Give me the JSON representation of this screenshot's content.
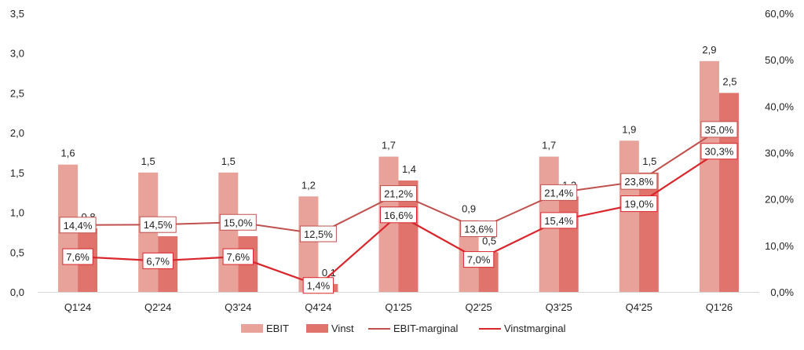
{
  "chart_data": {
    "type": "bar",
    "categories": [
      "Q1'24",
      "Q2'24",
      "Q3'24",
      "Q4'24",
      "Q1'25",
      "Q2'25",
      "Q3'25",
      "Q4'25",
      "Q1'26"
    ],
    "series": [
      {
        "name": "EBIT",
        "kind": "bar",
        "axis": "left",
        "color": "#e8a29a",
        "values": [
          1.6,
          1.5,
          1.5,
          1.2,
          1.7,
          0.9,
          1.7,
          1.9,
          2.9
        ],
        "labels": [
          "1,6",
          "1,5",
          "1,5",
          "1,2",
          "1,7",
          "0,9",
          "1,7",
          "1,9",
          "2,9"
        ]
      },
      {
        "name": "Vinst",
        "kind": "bar",
        "axis": "left",
        "color": "#e0736b",
        "values": [
          0.8,
          0.7,
          0.7,
          0.1,
          1.4,
          0.5,
          1.2,
          1.5,
          2.5
        ],
        "labels": [
          "0,8",
          "0,7",
          "0,7",
          "0,1",
          "1,4",
          "0,5",
          "1,2",
          "1,5",
          "2,5"
        ]
      },
      {
        "name": "EBIT-marginal",
        "kind": "line",
        "axis": "right",
        "color": "#c0504d",
        "values": [
          14.4,
          14.5,
          15.0,
          12.5,
          21.2,
          13.6,
          21.4,
          23.8,
          35.0
        ],
        "labels": [
          "14,4%",
          "14,5%",
          "15,0%",
          "12,5%",
          "21,2%",
          "13,6%",
          "21,4%",
          "23,8%",
          "35,0%"
        ]
      },
      {
        "name": "Vinstmarginal",
        "kind": "line",
        "axis": "right",
        "color": "#d9262c",
        "values": [
          7.6,
          6.7,
          7.6,
          1.4,
          16.6,
          7.0,
          15.4,
          19.0,
          30.3
        ],
        "labels": [
          "7,6%",
          "6,7%",
          "7,6%",
          "1,4%",
          "16,6%",
          "7,0%",
          "15,4%",
          "19,0%",
          "30,3%"
        ]
      }
    ],
    "y_left": {
      "ylim": [
        0,
        3.5
      ],
      "ticks": [
        "0,0",
        "0,5",
        "1,0",
        "1,5",
        "2,0",
        "2,5",
        "3,0",
        "3,5"
      ]
    },
    "y_right": {
      "ylim": [
        0,
        60
      ],
      "ticks": [
        "0,0%",
        "10,0%",
        "20,0%",
        "30,0%",
        "40,0%",
        "50,0%",
        "60,0%"
      ]
    },
    "title": "",
    "xlabel": "",
    "ylabel": "",
    "grid": false,
    "legend_position": "bottom",
    "legend": [
      "EBIT",
      "Vinst",
      "EBIT-marginal",
      "Vinstmarginal"
    ]
  }
}
